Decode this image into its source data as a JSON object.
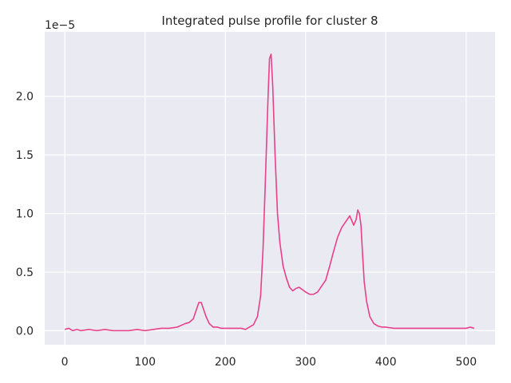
{
  "chart_data": {
    "type": "line",
    "title": "Integrated pulse profile for cluster 8",
    "xlabel": "",
    "ylabel": "",
    "y_scale_offset": "1e−5",
    "xlim": [
      -25,
      536
    ],
    "ylim": [
      -0.12,
      2.55
    ],
    "x_ticks": [
      0,
      100,
      200,
      300,
      400,
      500
    ],
    "x_tick_labels": [
      "0",
      "100",
      "200",
      "300",
      "400",
      "500"
    ],
    "y_ticks": [
      0.0,
      0.5,
      1.0,
      1.5,
      2.0
    ],
    "y_tick_labels": [
      "0.0",
      "0.5",
      "1.0",
      "1.5",
      "2.0"
    ],
    "grid": true,
    "series": [
      {
        "color": "#e8408a",
        "x": [
          0,
          5,
          10,
          15,
          20,
          30,
          40,
          50,
          60,
          70,
          80,
          90,
          100,
          110,
          120,
          130,
          140,
          150,
          155,
          160,
          164,
          167,
          170,
          173,
          176,
          180,
          185,
          190,
          195,
          200,
          210,
          220,
          225,
          230,
          235,
          240,
          244,
          247,
          250,
          253,
          255,
          257,
          259,
          262,
          265,
          268,
          272,
          276,
          280,
          284,
          288,
          292,
          296,
          300,
          305,
          310,
          315,
          320,
          325,
          330,
          335,
          340,
          345,
          350,
          355,
          360,
          363,
          365,
          367,
          369,
          371,
          373,
          376,
          380,
          385,
          390,
          395,
          400,
          410,
          420,
          430,
          440,
          450,
          460,
          470,
          480,
          490,
          500,
          505,
          510
        ],
        "y": [
          0.01,
          0.02,
          0.0,
          0.01,
          0.0,
          0.01,
          0.0,
          0.01,
          0.0,
          0.0,
          0.0,
          0.01,
          0.0,
          0.01,
          0.02,
          0.02,
          0.03,
          0.06,
          0.07,
          0.1,
          0.18,
          0.24,
          0.24,
          0.18,
          0.12,
          0.06,
          0.03,
          0.03,
          0.02,
          0.02,
          0.02,
          0.02,
          0.01,
          0.03,
          0.05,
          0.12,
          0.3,
          0.7,
          1.3,
          1.95,
          2.32,
          2.36,
          2.1,
          1.5,
          1.0,
          0.75,
          0.55,
          0.45,
          0.37,
          0.34,
          0.36,
          0.37,
          0.35,
          0.33,
          0.31,
          0.31,
          0.33,
          0.38,
          0.43,
          0.55,
          0.68,
          0.8,
          0.88,
          0.93,
          0.98,
          0.9,
          0.95,
          1.03,
          1.0,
          0.9,
          0.65,
          0.42,
          0.25,
          0.12,
          0.06,
          0.04,
          0.03,
          0.03,
          0.02,
          0.02,
          0.02,
          0.02,
          0.02,
          0.02,
          0.02,
          0.02,
          0.02,
          0.02,
          0.03,
          0.02
        ]
      }
    ]
  }
}
